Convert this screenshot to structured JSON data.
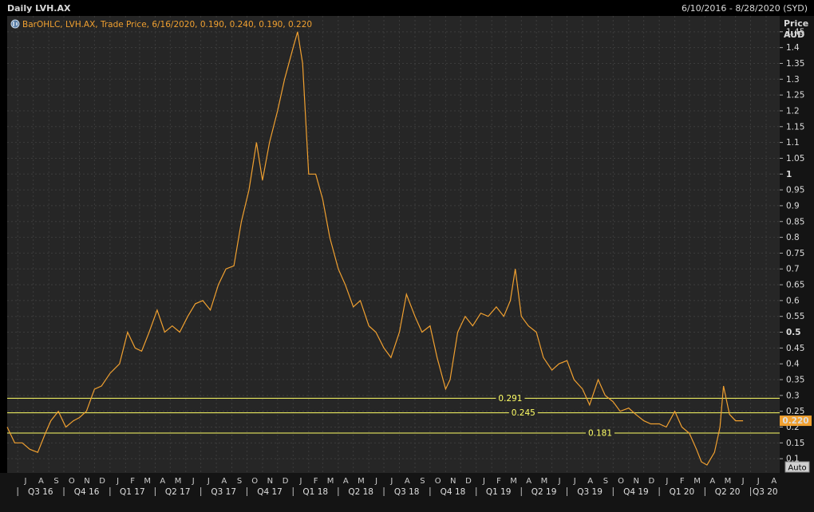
{
  "header": {
    "title": "Daily LVH.AX",
    "date_range": "6/10/2016 - 8/28/2020 (SYD)"
  },
  "legend": {
    "text": "BarOHLC, LVH.AX, Trade Price, 6/16/2020, 0.190, 0.240, 0.190, 0.220",
    "icon": "bar-ohlc-icon"
  },
  "axis": {
    "title_line1": "Price",
    "title_line2": "AUD",
    "auto_label": "Auto"
  },
  "colors": {
    "background": "#262626",
    "grid": "#3c3c3c",
    "price": "#f0a030",
    "level": "#ffff66",
    "last_price_box": "#f0a030"
  },
  "chart_data": {
    "type": "line",
    "title": "Daily LVH.AX",
    "ylabel": "Price AUD",
    "ylim": [
      0.055,
      1.5
    ],
    "x_range": [
      "2016-06-10",
      "2020-08-28"
    ],
    "y_ticks": [
      "0.1",
      "0.15",
      "0.2",
      "0.25",
      "0.3",
      "0.35",
      "0.4",
      "0.45",
      "0.5",
      "0.55",
      "0.6",
      "0.65",
      "0.7",
      "0.75",
      "0.8",
      "0.85",
      "0.9",
      "0.95",
      "1",
      "1.05",
      "1.1",
      "1.15",
      "1.2",
      "1.25",
      "1.3",
      "1.35",
      "1.4",
      "1.45"
    ],
    "month_labels": [
      "J",
      "A",
      "S",
      "O",
      "N",
      "D",
      "J",
      "F",
      "M",
      "A",
      "M",
      "J",
      "J",
      "A",
      "S",
      "O",
      "N",
      "D",
      "J",
      "F",
      "M",
      "A",
      "M",
      "J",
      "J",
      "A",
      "S",
      "O",
      "N",
      "D",
      "J",
      "F",
      "M",
      "A",
      "M",
      "J",
      "J",
      "A",
      "S",
      "O",
      "N",
      "D",
      "J",
      "F",
      "M",
      "A",
      "M",
      "J",
      "J",
      "A"
    ],
    "quarter_labels": [
      {
        "label": "Q3 16",
        "start": "2016-07-01",
        "end": "2016-09-30"
      },
      {
        "label": "Q4 16",
        "start": "2016-10-01",
        "end": "2016-12-31"
      },
      {
        "label": "Q1 17",
        "start": "2017-01-01",
        "end": "2017-03-31"
      },
      {
        "label": "Q2 17",
        "start": "2017-04-01",
        "end": "2017-06-30"
      },
      {
        "label": "Q3 17",
        "start": "2017-07-01",
        "end": "2017-09-30"
      },
      {
        "label": "Q4 17",
        "start": "2017-10-01",
        "end": "2017-12-31"
      },
      {
        "label": "Q1 18",
        "start": "2018-01-01",
        "end": "2018-03-31"
      },
      {
        "label": "Q2 18",
        "start": "2018-04-01",
        "end": "2018-06-30"
      },
      {
        "label": "Q3 18",
        "start": "2018-07-01",
        "end": "2018-09-30"
      },
      {
        "label": "Q4 18",
        "start": "2018-10-01",
        "end": "2018-12-31"
      },
      {
        "label": "Q1 19",
        "start": "2019-01-01",
        "end": "2019-03-31"
      },
      {
        "label": "Q2 19",
        "start": "2019-04-01",
        "end": "2019-06-30"
      },
      {
        "label": "Q3 19",
        "start": "2019-07-01",
        "end": "2019-09-30"
      },
      {
        "label": "Q4 19",
        "start": "2019-10-01",
        "end": "2019-12-31"
      },
      {
        "label": "Q1 20",
        "start": "2020-01-01",
        "end": "2020-03-31"
      },
      {
        "label": "Q2 20",
        "start": "2020-04-01",
        "end": "2020-06-30"
      },
      {
        "label": "Q3 20",
        "start": "2020-07-01",
        "end": "2020-09-30"
      }
    ],
    "horizontal_levels": [
      {
        "value": 0.291,
        "label": "0.291",
        "label_date": "2019-03-10"
      },
      {
        "value": 0.245,
        "label": "0.245",
        "label_date": "2019-04-05"
      },
      {
        "value": 0.181,
        "label": "0.181",
        "label_date": "2019-09-05"
      }
    ],
    "last_price": {
      "value": 0.22,
      "label": "0.220"
    },
    "series": [
      {
        "x": [
          "2016-06-10",
          "2016-06-25",
          "2016-07-10",
          "2016-07-25",
          "2016-08-10",
          "2016-08-25",
          "2016-09-05",
          "2016-09-20",
          "2016-10-05",
          "2016-10-20",
          "2016-11-01",
          "2016-11-15",
          "2016-12-01",
          "2016-12-15",
          "2017-01-01",
          "2017-01-20",
          "2017-02-05",
          "2017-02-20",
          "2017-03-05",
          "2017-03-20",
          "2017-04-05",
          "2017-04-20",
          "2017-05-05",
          "2017-05-20",
          "2017-06-05",
          "2017-06-20",
          "2017-07-05",
          "2017-07-20",
          "2017-08-05",
          "2017-08-20",
          "2017-09-05",
          "2017-09-20",
          "2017-10-05",
          "2017-10-20",
          "2017-11-01",
          "2017-11-15",
          "2017-12-01",
          "2017-12-15",
          "2018-01-01",
          "2018-01-10",
          "2018-01-20",
          "2018-02-01",
          "2018-02-15",
          "2018-03-01",
          "2018-03-15",
          "2018-04-01",
          "2018-04-15",
          "2018-05-01",
          "2018-05-15",
          "2018-06-01",
          "2018-06-15",
          "2018-07-01",
          "2018-07-15",
          "2018-08-01",
          "2018-08-15",
          "2018-09-01",
          "2018-09-15",
          "2018-10-01",
          "2018-10-15",
          "2018-11-01",
          "2018-11-10",
          "2018-11-25",
          "2018-12-10",
          "2018-12-25",
          "2019-01-10",
          "2019-01-25",
          "2019-02-10",
          "2019-02-25",
          "2019-03-10",
          "2019-03-20",
          "2019-04-01",
          "2019-04-15",
          "2019-05-01",
          "2019-05-15",
          "2019-06-01",
          "2019-06-15",
          "2019-07-01",
          "2019-07-15",
          "2019-08-01",
          "2019-08-15",
          "2019-09-01",
          "2019-09-15",
          "2019-10-01",
          "2019-10-15",
          "2019-11-01",
          "2019-11-15",
          "2019-12-01",
          "2019-12-15",
          "2020-01-01",
          "2020-01-15",
          "2020-02-01",
          "2020-02-15",
          "2020-03-01",
          "2020-03-15",
          "2020-03-25",
          "2020-04-05",
          "2020-04-20",
          "2020-05-01",
          "2020-05-08",
          "2020-05-20",
          "2020-06-01",
          "2020-06-16"
        ],
        "values": [
          0.2,
          0.15,
          0.15,
          0.13,
          0.12,
          0.18,
          0.22,
          0.25,
          0.2,
          0.22,
          0.23,
          0.25,
          0.32,
          0.33,
          0.37,
          0.4,
          0.5,
          0.45,
          0.44,
          0.5,
          0.57,
          0.5,
          0.52,
          0.5,
          0.55,
          0.59,
          0.6,
          0.57,
          0.65,
          0.7,
          0.71,
          0.85,
          0.95,
          1.1,
          0.98,
          1.1,
          1.2,
          1.3,
          1.4,
          1.45,
          1.35,
          1.0,
          1.0,
          0.92,
          0.8,
          0.7,
          0.65,
          0.58,
          0.6,
          0.52,
          0.5,
          0.45,
          0.42,
          0.5,
          0.62,
          0.55,
          0.5,
          0.52,
          0.42,
          0.32,
          0.35,
          0.5,
          0.55,
          0.52,
          0.56,
          0.55,
          0.58,
          0.55,
          0.6,
          0.7,
          0.55,
          0.52,
          0.5,
          0.42,
          0.38,
          0.4,
          0.41,
          0.35,
          0.32,
          0.27,
          0.35,
          0.3,
          0.28,
          0.25,
          0.26,
          0.24,
          0.22,
          0.21,
          0.21,
          0.2,
          0.25,
          0.2,
          0.18,
          0.13,
          0.09,
          0.08,
          0.12,
          0.2,
          0.33,
          0.24,
          0.22,
          0.22
        ]
      }
    ]
  }
}
